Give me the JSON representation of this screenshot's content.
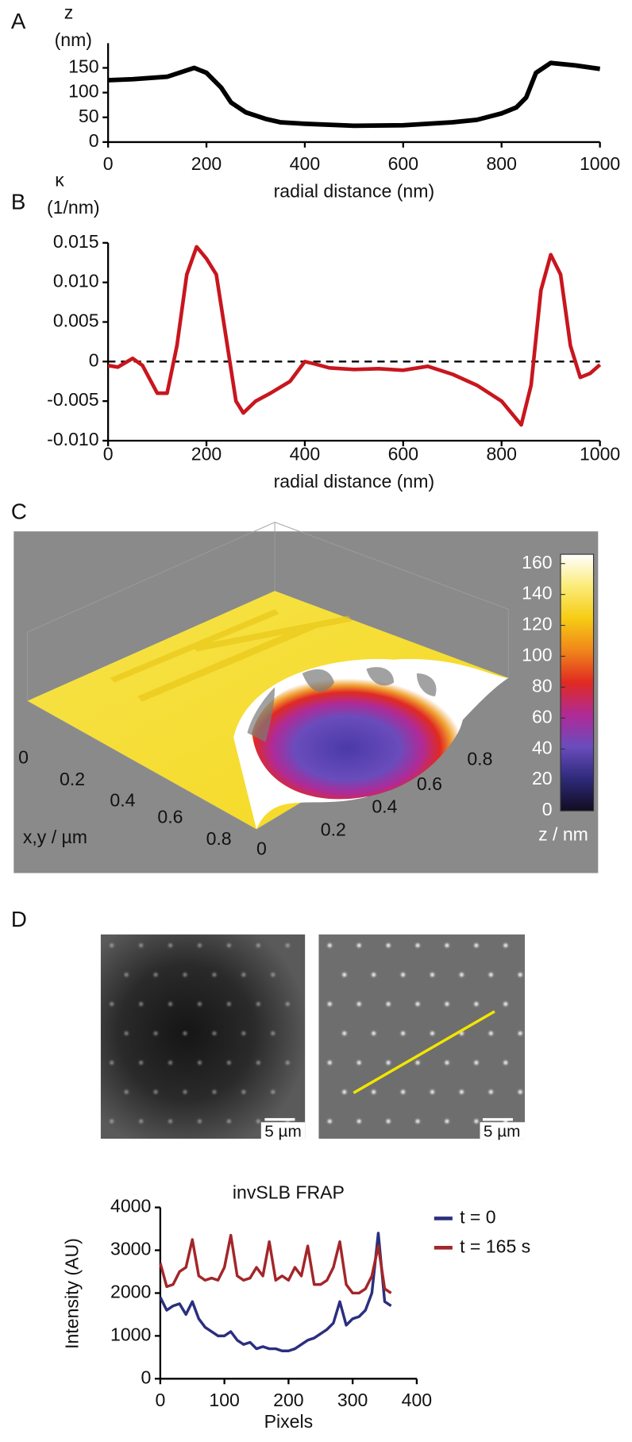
{
  "chart_data": [
    {
      "type": "line",
      "panel": "A",
      "ylabel": [
        "z",
        "(nm)"
      ],
      "xlabel": "radial distance (nm)",
      "xlim": [
        0,
        1000
      ],
      "xticks": [
        0,
        200,
        400,
        600,
        800,
        1000
      ],
      "ylim": [
        0,
        200
      ],
      "yticks": [
        0,
        50,
        100,
        150
      ],
      "color": "#000000",
      "x": [
        0,
        50,
        120,
        175,
        200,
        230,
        250,
        280,
        320,
        350,
        400,
        500,
        600,
        700,
        750,
        800,
        830,
        850,
        870,
        900,
        950,
        1000
      ],
      "values": [
        125,
        127,
        132,
        150,
        140,
        110,
        80,
        60,
        47,
        40,
        37,
        33,
        34,
        40,
        45,
        58,
        70,
        90,
        140,
        160,
        155,
        148
      ]
    },
    {
      "type": "line",
      "panel": "B",
      "ylabel": [
        "κ",
        "(1/nm)"
      ],
      "xlabel": "radial distance (nm)",
      "zero_line": true,
      "xlim": [
        0,
        1000
      ],
      "xticks": [
        0,
        200,
        400,
        600,
        800,
        1000
      ],
      "ylim": [
        -0.01,
        0.015
      ],
      "yticks": [
        {
          "value": -0.01,
          "label": "-0.010"
        },
        -0.005,
        0,
        0.005,
        {
          "value": 0.01,
          "label": "0.010"
        },
        0.015
      ],
      "color": "#c8161e",
      "x": [
        0,
        20,
        50,
        70,
        100,
        120,
        140,
        160,
        180,
        200,
        220,
        240,
        260,
        275,
        300,
        330,
        370,
        400,
        420,
        450,
        500,
        550,
        600,
        650,
        700,
        750,
        800,
        840,
        860,
        880,
        900,
        920,
        940,
        960,
        980,
        1000
      ],
      "values": [
        -0.0005,
        -0.0007,
        0.0004,
        -0.0005,
        -0.004,
        -0.004,
        0.002,
        0.011,
        0.0145,
        0.013,
        0.011,
        0.003,
        -0.005,
        -0.0065,
        -0.005,
        -0.004,
        -0.0025,
        0,
        -0.0003,
        -0.0008,
        -0.001,
        -0.0009,
        -0.0011,
        -0.0006,
        -0.0016,
        -0.003,
        -0.005,
        -0.008,
        -0.003,
        0.009,
        0.0135,
        0.011,
        0.002,
        -0.002,
        -0.0015,
        -0.0004
      ]
    },
    {
      "type": "surface",
      "panel": "C",
      "axis_label": "x,y / µm",
      "colorbar_label": "z / nm",
      "xticks": [
        0,
        0.2,
        0.4,
        0.6,
        0.8
      ],
      "yticks": [
        0,
        0.2,
        0.4,
        0.6,
        0.8
      ],
      "clim": [
        0,
        166
      ],
      "cticks": [
        0,
        20,
        40,
        60,
        80,
        100,
        120,
        140,
        160
      ]
    },
    {
      "type": "line",
      "panel": "D",
      "scale_bar_labels": [
        "5 µm",
        "5 µm"
      ],
      "title": "invSLB FRAP",
      "xlabel": "Pixels",
      "ylabel": "Intensity (AU)",
      "xlim": [
        0,
        400
      ],
      "xticks": [
        0,
        100,
        200,
        300,
        400
      ],
      "ylim": [
        0,
        4000
      ],
      "yticks": [
        0,
        1000,
        2000,
        3000,
        4000
      ],
      "x": [
        0,
        10,
        20,
        30,
        40,
        50,
        60,
        70,
        80,
        90,
        100,
        110,
        120,
        130,
        140,
        150,
        160,
        170,
        180,
        190,
        200,
        210,
        220,
        230,
        240,
        250,
        260,
        270,
        280,
        290,
        300,
        310,
        320,
        330,
        340,
        350,
        360
      ],
      "series": [
        {
          "name": "t = 0",
          "color": "#2b2f7e",
          "values": [
            1900,
            1600,
            1700,
            1750,
            1500,
            1800,
            1400,
            1200,
            1100,
            1000,
            1000,
            1100,
            900,
            800,
            850,
            700,
            750,
            700,
            700,
            650,
            650,
            700,
            800,
            900,
            950,
            1050,
            1150,
            1300,
            1800,
            1250,
            1400,
            1450,
            1600,
            2000,
            3400,
            1800,
            1700
          ]
        },
        {
          "name": "t = 165 s",
          "color": "#a3262a",
          "values": [
            2700,
            2150,
            2200,
            2500,
            2600,
            3250,
            2400,
            2300,
            2350,
            2300,
            2600,
            3350,
            2400,
            2300,
            2350,
            2600,
            2400,
            3200,
            2300,
            2400,
            2300,
            2600,
            2400,
            3100,
            2200,
            2200,
            2300,
            2600,
            3200,
            2200,
            2000,
            2000,
            2100,
            2400,
            3100,
            2100,
            2000
          ]
        }
      ]
    }
  ]
}
